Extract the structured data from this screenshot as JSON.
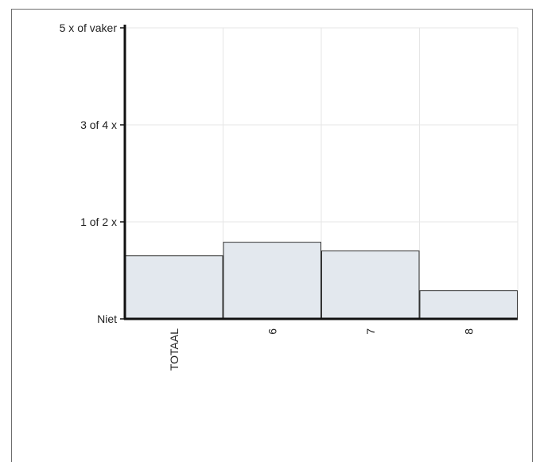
{
  "chart_data": {
    "type": "bar",
    "title": "",
    "xlabel": "",
    "ylabel": "",
    "categories": [
      "TOTAAL",
      "6",
      "7",
      "8"
    ],
    "values": [
      0.65,
      0.79,
      0.7,
      0.29
    ],
    "y_ticks": [
      {
        "value": 0,
        "label": "Niet"
      },
      {
        "value": 1,
        "label": "1 of 2 x"
      },
      {
        "value": 2,
        "label": "3 of 4 x"
      },
      {
        "value": 3,
        "label": "5 x of vaker"
      }
    ],
    "ylim": [
      0,
      3
    ],
    "grid": true,
    "bar_fill": "#e3e8ee",
    "bar_stroke": "#333333",
    "grid_color": "#e6e6e6",
    "axis_color": "#111111"
  }
}
